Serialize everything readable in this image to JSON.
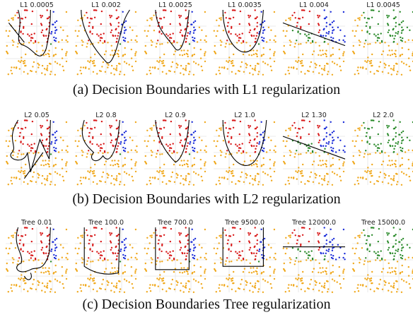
{
  "rows": [
    {
      "panels": [
        "L1 0.0005",
        "L1 0.002",
        "L1 0.0025",
        "L1 0.0035",
        "L1 0.004",
        "L1 0.0045"
      ],
      "caption": "(a) Decision Boundaries with L1 regularization"
    },
    {
      "panels": [
        "L2 0.05",
        "L2 0.8",
        "L2 0.9",
        "L2 1.0",
        "L2 1.30",
        "L2 2.0"
      ],
      "caption": "(b) Decision Boundaries with L2 regularization"
    },
    {
      "panels": [
        "Tree 0.01",
        "Tree 100.0",
        "Tree 700.0",
        "Tree 9500.0",
        "Tree 12000.0",
        "Tree 15000.0"
      ],
      "caption": "(c) Decision Boundaries Tree regularization"
    }
  ]
}
